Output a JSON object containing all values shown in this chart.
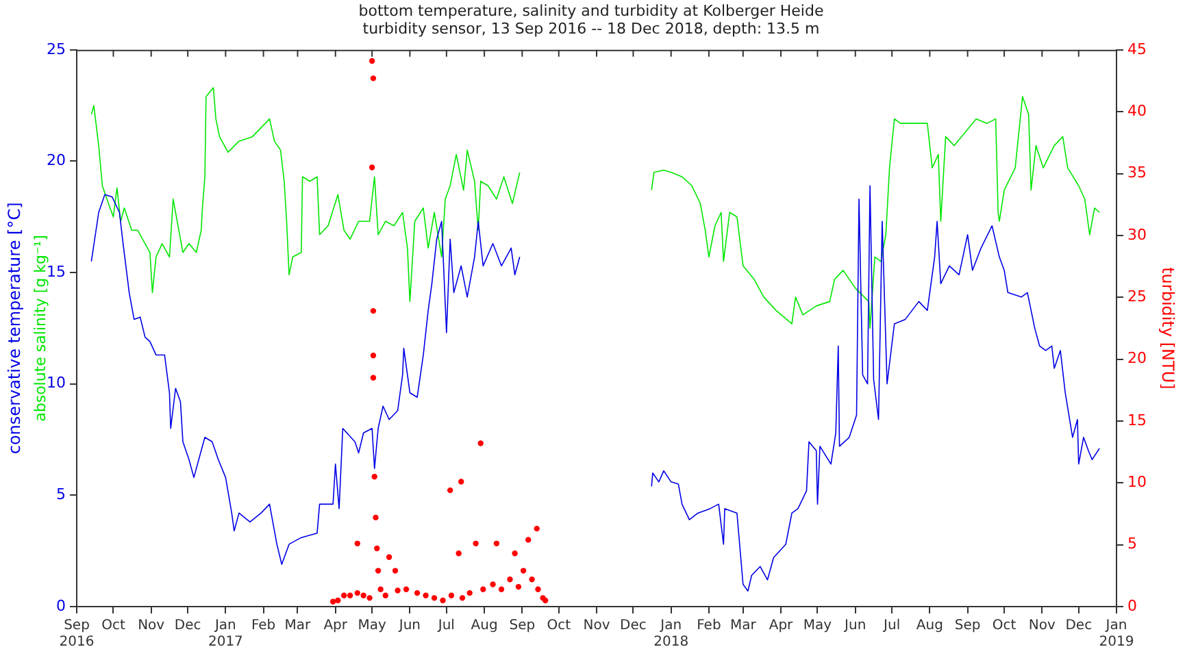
{
  "chart_data": {
    "type": "line",
    "title": "bottom temperature, salinity and turbidity at Kolberger Heide",
    "subtitle": "turbidity sensor, 13 Sep 2016 -- 18 Dec 2018, depth: 13.5 m",
    "ylabel": "conservative temperature [°C]",
    "y2label": "turbidity [NTU]",
    "xlim": [
      "2016-09-01",
      "2019-01-01"
    ],
    "xticks": [
      {
        "value": "2016-09-01",
        "label": "Sep\n2016"
      },
      {
        "value": "2016-10-01",
        "label": "Oct"
      },
      {
        "value": "2016-11-01",
        "label": "Nov"
      },
      {
        "value": "2016-12-01",
        "label": "Dec"
      },
      {
        "value": "2017-01-01",
        "label": "Jan\n2017"
      },
      {
        "value": "2017-02-01",
        "label": "Feb"
      },
      {
        "value": "2017-03-01",
        "label": "Mar"
      },
      {
        "value": "2017-04-01",
        "label": "Apr"
      },
      {
        "value": "2017-05-01",
        "label": "May"
      },
      {
        "value": "2017-06-01",
        "label": "Jun"
      },
      {
        "value": "2017-07-01",
        "label": "Jul"
      },
      {
        "value": "2017-08-01",
        "label": "Aug"
      },
      {
        "value": "2017-09-01",
        "label": "Sep"
      },
      {
        "value": "2017-10-01",
        "label": "Oct"
      },
      {
        "value": "2017-11-01",
        "label": "Nov"
      },
      {
        "value": "2017-12-01",
        "label": "Dec"
      },
      {
        "value": "2018-01-01",
        "label": "Jan\n2018"
      },
      {
        "value": "2018-02-01",
        "label": "Feb"
      },
      {
        "value": "2018-03-01",
        "label": "Mar"
      },
      {
        "value": "2018-04-01",
        "label": "Apr"
      },
      {
        "value": "2018-05-01",
        "label": "May"
      },
      {
        "value": "2018-06-01",
        "label": "Jun"
      },
      {
        "value": "2018-07-01",
        "label": "Jul"
      },
      {
        "value": "2018-08-01",
        "label": "Aug"
      },
      {
        "value": "2018-09-01",
        "label": "Sep"
      },
      {
        "value": "2018-10-01",
        "label": "Oct"
      },
      {
        "value": "2018-11-01",
        "label": "Nov"
      },
      {
        "value": "2018-12-01",
        "label": "Dec"
      },
      {
        "value": "2019-01-01",
        "label": "Jan\n2019"
      }
    ],
    "ylim": [
      0,
      25
    ],
    "yticks": [
      0,
      5,
      10,
      15,
      20,
      25
    ],
    "y2lim": [
      0,
      45
    ],
    "y2ticks": [
      0,
      5,
      10,
      15,
      20,
      25,
      30,
      35,
      40,
      45
    ],
    "grid": false,
    "legend": false,
    "series": [
      {
        "color": "#0000e6",
        "x": [
          "2016-09-13",
          "2016-09-19",
          "2016-09-24",
          "2016-09-30",
          "2016-10-06",
          "2016-10-09",
          "2016-10-14",
          "2016-10-18",
          "2016-10-23",
          "2016-10-27",
          "2016-10-31",
          "2016-11-05",
          "2016-11-12",
          "2016-11-16",
          "2016-11-17",
          "2016-11-21",
          "2016-11-25",
          "2016-11-27",
          "2016-12-02",
          "2016-12-06",
          "2016-12-10",
          "2016-12-15",
          "2016-12-21",
          "2016-12-26",
          "2017-01-01",
          "2017-01-06",
          "2017-01-08",
          "2017-01-12",
          "2017-01-21",
          "2017-01-30",
          "2017-02-06",
          "2017-02-12",
          "2017-02-16",
          "2017-02-22",
          "2017-03-04",
          "2017-03-17",
          "2017-03-19",
          "2017-03-30",
          "2017-04-01",
          "2017-04-04",
          "2017-04-07",
          "2017-04-17",
          "2017-04-20",
          "2017-04-24",
          "2017-05-01",
          "2017-05-03",
          "2017-05-06",
          "2017-05-10",
          "2017-05-15",
          "2017-05-22",
          "2017-05-26",
          "2017-05-27",
          "2017-06-01",
          "2017-06-07",
          "2017-06-12",
          "2017-06-16",
          "2017-06-19",
          "2017-06-23",
          "2017-06-27",
          "2017-07-01",
          "2017-07-04",
          "2017-07-07",
          "2017-07-13",
          "2017-07-18",
          "2017-07-24",
          "2017-07-27",
          "2017-07-31",
          "2017-08-08",
          "2017-08-15",
          "2017-08-23",
          "2017-08-26",
          "2017-08-30",
          "2017-10-15",
          "2017-12-16",
          "2017-12-17",
          "2017-12-22",
          "2017-12-26",
          "2018-01-01",
          "2018-01-07",
          "2018-01-10",
          "2018-01-16",
          "2018-01-23",
          "2018-02-02",
          "2018-02-09",
          "2018-02-13",
          "2018-02-14",
          "2018-02-24",
          "2018-03-01",
          "2018-03-05",
          "2018-03-08",
          "2018-03-15",
          "2018-03-21",
          "2018-03-26",
          "2018-04-05",
          "2018-04-10",
          "2018-04-15",
          "2018-04-22",
          "2018-04-24",
          "2018-04-30",
          "2018-05-01",
          "2018-05-03",
          "2018-05-12",
          "2018-05-16",
          "2018-05-18",
          "2018-05-19",
          "2018-05-27",
          "2018-06-02",
          "2018-06-04",
          "2018-06-07",
          "2018-06-11",
          "2018-06-13",
          "2018-06-16",
          "2018-06-20",
          "2018-06-23",
          "2018-06-27",
          "2018-07-03",
          "2018-07-12",
          "2018-07-23",
          "2018-07-30",
          "2018-08-05",
          "2018-08-07",
          "2018-08-10",
          "2018-08-17",
          "2018-08-25",
          "2018-09-01",
          "2018-09-05",
          "2018-09-12",
          "2018-09-21",
          "2018-09-27",
          "2018-10-01",
          "2018-10-04",
          "2018-10-15",
          "2018-10-20",
          "2018-10-26",
          "2018-10-30",
          "2018-11-04",
          "2018-11-09",
          "2018-11-11",
          "2018-11-16",
          "2018-11-20",
          "2018-11-26",
          "2018-11-30",
          "2018-12-01",
          "2018-12-05",
          "2018-12-09",
          "2018-12-12",
          "2018-12-18"
        ],
        "values": [
          15.5,
          17.7,
          18.5,
          18.4,
          17.7,
          16.3,
          14.1,
          12.9,
          13.0,
          12.1,
          11.9,
          11.3,
          11.3,
          9.6,
          8.0,
          9.8,
          9.2,
          7.4,
          6.6,
          5.8,
          6.6,
          7.6,
          7.4,
          6.6,
          5.8,
          4.2,
          3.4,
          4.2,
          3.8,
          4.2,
          4.6,
          2.8,
          1.9,
          2.8,
          3.1,
          3.3,
          4.6,
          4.6,
          6.4,
          4.4,
          8.0,
          7.4,
          6.9,
          7.8,
          8.0,
          6.2,
          8.0,
          9.0,
          8.4,
          8.8,
          10.4,
          11.6,
          9.6,
          9.4,
          11.3,
          13.3,
          14.5,
          16.5,
          17.3,
          12.3,
          16.5,
          14.1,
          15.3,
          13.9,
          15.7,
          17.3,
          15.3,
          16.3,
          15.3,
          16.1,
          14.9,
          15.7,
          null,
          5.4,
          6.0,
          5.6,
          6.1,
          5.6,
          5.5,
          4.6,
          3.9,
          4.2,
          4.4,
          4.6,
          2.8,
          4.4,
          4.2,
          1.0,
          0.7,
          1.4,
          1.8,
          1.2,
          2.2,
          2.8,
          4.2,
          4.4,
          5.2,
          7.4,
          7.0,
          4.6,
          7.2,
          6.4,
          7.8,
          11.7,
          7.2,
          7.6,
          8.6,
          18.3,
          10.4,
          10.0,
          18.9,
          10.2,
          8.4,
          17.3,
          10.0,
          12.7,
          12.9,
          13.7,
          13.3,
          15.7,
          17.3,
          14.5,
          15.3,
          14.9,
          16.7,
          15.1,
          16.1,
          17.1,
          15.7,
          15.1,
          14.1,
          13.9,
          14.1,
          12.5,
          11.7,
          11.5,
          11.7,
          10.7,
          11.5,
          9.6,
          7.6,
          8.4,
          6.4,
          7.6,
          7.0,
          6.6,
          7.1
        ]
      },
      {
        "name": "absolute salinity [g kg⁻¹]",
        "color": "#00e600",
        "x": [
          "2016-09-13",
          "2016-09-15",
          "2016-09-19",
          "2016-09-22",
          "2016-09-27",
          "2016-10-01",
          "2016-10-04",
          "2016-10-07",
          "2016-10-10",
          "2016-10-16",
          "2016-10-21",
          "2016-10-27",
          "2016-10-31",
          "2016-11-02",
          "2016-11-05",
          "2016-11-10",
          "2016-11-16",
          "2016-11-19",
          "2016-11-23",
          "2016-11-27",
          "2016-12-02",
          "2016-12-08",
          "2016-12-12",
          "2016-12-13",
          "2016-12-15",
          "2016-12-16",
          "2016-12-22",
          "2016-12-24",
          "2016-12-27",
          "2017-01-03",
          "2017-01-12",
          "2017-01-23",
          "2017-01-30",
          "2017-02-06",
          "2017-02-10",
          "2017-02-15",
          "2017-02-18",
          "2017-02-20",
          "2017-02-22",
          "2017-02-25",
          "2017-03-04",
          "2017-03-05",
          "2017-03-11",
          "2017-03-17",
          "2017-03-19",
          "2017-03-26",
          "2017-04-03",
          "2017-04-08",
          "2017-04-13",
          "2017-04-20",
          "2017-04-29",
          "2017-05-03",
          "2017-05-06",
          "2017-05-12",
          "2017-05-19",
          "2017-05-26",
          "2017-05-30",
          "2017-06-01",
          "2017-06-05",
          "2017-06-12",
          "2017-06-16",
          "2017-06-21",
          "2017-06-27",
          "2017-06-30",
          "2017-07-04",
          "2017-07-09",
          "2017-07-15",
          "2017-07-18",
          "2017-07-24",
          "2017-07-27",
          "2017-07-29",
          "2017-08-04",
          "2017-08-11",
          "2017-08-17",
          "2017-08-24",
          "2017-08-30",
          "2017-10-15",
          "2017-12-16",
          "2017-12-18",
          "2017-12-26",
          "2018-01-01",
          "2018-01-10",
          "2018-01-18",
          "2018-01-25",
          "2018-01-29",
          "2018-02-01",
          "2018-02-06",
          "2018-02-11",
          "2018-02-13",
          "2018-02-18",
          "2018-02-24",
          "2018-03-01",
          "2018-03-10",
          "2018-03-18",
          "2018-03-28",
          "2018-04-10",
          "2018-04-13",
          "2018-04-19",
          "2018-04-30",
          "2018-05-11",
          "2018-05-15",
          "2018-05-22",
          "2018-06-01",
          "2018-06-12",
          "2018-06-13",
          "2018-06-17",
          "2018-06-22",
          "2018-06-26",
          "2018-06-29",
          "2018-07-03",
          "2018-07-08",
          "2018-07-19",
          "2018-07-30",
          "2018-08-03",
          "2018-08-08",
          "2018-08-10",
          "2018-08-14",
          "2018-08-21",
          "2018-08-30",
          "2018-09-08",
          "2018-09-17",
          "2018-09-24",
          "2018-09-26",
          "2018-09-27",
          "2018-10-01",
          "2018-10-10",
          "2018-10-16",
          "2018-10-21",
          "2018-10-23",
          "2018-10-27",
          "2018-11-02",
          "2018-11-11",
          "2018-11-18",
          "2018-11-22",
          "2018-12-01",
          "2018-12-06",
          "2018-12-10",
          "2018-12-14",
          "2018-12-18"
        ],
        "values": [
          22.1,
          22.5,
          20.7,
          18.9,
          18.1,
          17.5,
          18.8,
          17.3,
          17.9,
          16.9,
          16.9,
          16.3,
          15.9,
          14.1,
          15.7,
          16.3,
          15.7,
          18.3,
          17.1,
          15.9,
          16.3,
          15.9,
          16.9,
          17.9,
          19.3,
          22.9,
          23.3,
          21.9,
          21.1,
          20.4,
          20.9,
          21.1,
          21.5,
          21.9,
          20.9,
          20.5,
          19.1,
          17.3,
          14.9,
          15.7,
          15.9,
          19.3,
          19.1,
          19.3,
          16.7,
          17.1,
          18.5,
          16.9,
          16.5,
          17.3,
          17.3,
          19.3,
          16.7,
          17.3,
          17.1,
          17.7,
          16.1,
          13.7,
          17.3,
          17.9,
          16.1,
          17.7,
          15.7,
          18.3,
          18.9,
          20.3,
          18.7,
          20.5,
          19.1,
          16.9,
          19.1,
          18.9,
          18.3,
          19.3,
          18.1,
          19.5,
          null,
          18.7,
          19.5,
          19.6,
          19.5,
          19.3,
          18.9,
          18.1,
          16.9,
          15.7,
          17.1,
          17.7,
          15.5,
          17.7,
          17.5,
          15.3,
          14.7,
          13.9,
          13.3,
          12.7,
          13.9,
          13.1,
          13.5,
          13.7,
          14.7,
          15.1,
          14.3,
          13.7,
          12.5,
          15.7,
          15.5,
          16.7,
          19.7,
          21.9,
          21.7,
          21.7,
          21.7,
          19.7,
          20.3,
          17.3,
          21.1,
          20.7,
          21.3,
          21.9,
          21.7,
          21.9,
          17.7,
          17.3,
          18.7,
          19.7,
          22.9,
          22.1,
          18.7,
          20.7,
          19.7,
          20.7,
          21.1,
          19.7,
          18.9,
          18.3,
          16.7,
          17.9,
          17.7
        ]
      },
      {
        "type": "scatter",
        "axis": "y2",
        "marker": "circle",
        "color": "#ff0000",
        "x": [
          "2017-03-30",
          "2017-04-03",
          "2017-04-08",
          "2017-04-13",
          "2017-04-19",
          "2017-04-19",
          "2017-04-24",
          "2017-04-29",
          "2017-05-01",
          "2017-05-02",
          "2017-05-01",
          "2017-05-02",
          "2017-05-02",
          "2017-05-02",
          "2017-05-03",
          "2017-05-04",
          "2017-05-05",
          "2017-05-06",
          "2017-05-08",
          "2017-05-12",
          "2017-05-15",
          "2017-05-20",
          "2017-05-22",
          "2017-05-29",
          "2017-06-07",
          "2017-06-14",
          "2017-06-21",
          "2017-06-28",
          "2017-07-04",
          "2017-07-05",
          "2017-07-11",
          "2017-07-13",
          "2017-07-14",
          "2017-07-20",
          "2017-07-25",
          "2017-07-29",
          "2017-07-31",
          "2017-08-08",
          "2017-08-11",
          "2017-08-15",
          "2017-08-22",
          "2017-08-26",
          "2017-08-29",
          "2017-09-02",
          "2017-09-06",
          "2017-09-09",
          "2017-09-13",
          "2017-09-14",
          "2017-09-18",
          "2017-09-20"
        ],
        "values": [
          0.4,
          0.5,
          0.9,
          0.9,
          5.1,
          1.1,
          0.9,
          0.7,
          44.1,
          42.7,
          35.5,
          23.9,
          20.3,
          18.5,
          10.5,
          7.2,
          4.7,
          2.9,
          1.4,
          0.9,
          4.0,
          2.9,
          1.3,
          1.4,
          1.1,
          0.9,
          0.7,
          0.5,
          9.4,
          0.9,
          4.3,
          10.1,
          0.7,
          1.1,
          5.1,
          13.2,
          1.4,
          1.8,
          5.1,
          1.4,
          2.2,
          4.3,
          1.6,
          2.9,
          5.4,
          2.2,
          6.3,
          1.4,
          0.7,
          0.5
        ]
      }
    ]
  }
}
